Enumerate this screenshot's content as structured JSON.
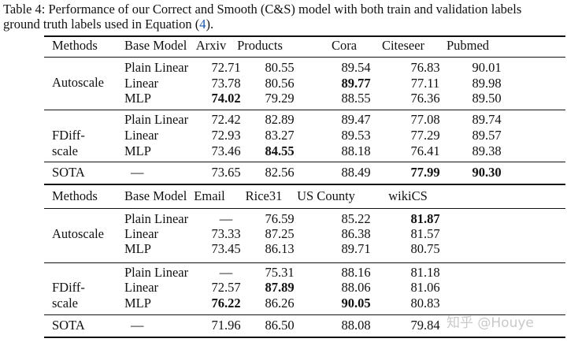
{
  "caption": {
    "line1": "Table 4: Performance of our Correct and Smooth (C&S) model with both train and validation labels",
    "line2_prefix": "ground truth labels used in Equation (",
    "line2_ref": "4",
    "line2_suffix": ")."
  },
  "table1": {
    "headers": [
      "Methods",
      "Base Model",
      "Arxiv",
      "Products",
      "Cora",
      "Citeseer",
      "Pubmed"
    ],
    "groups": [
      {
        "method": "Autoscale",
        "rows": [
          {
            "base": "Plain Linear",
            "cells": [
              "72.71",
              "80.55",
              "89.54",
              "76.83",
              "90.01"
            ],
            "bold": [
              false,
              false,
              false,
              false,
              false
            ]
          },
          {
            "base": "Linear",
            "cells": [
              "73.78",
              "80.56",
              "89.77",
              "77.11",
              "89.98"
            ],
            "bold": [
              false,
              false,
              true,
              false,
              false
            ]
          },
          {
            "base": "MLP",
            "cells": [
              "74.02",
              "79.29",
              "88.55",
              "76.36",
              "89.50"
            ],
            "bold": [
              true,
              false,
              false,
              false,
              false
            ]
          }
        ]
      },
      {
        "method_line1": "FDiff-",
        "method_line2": "scale",
        "rows": [
          {
            "base": "Plain Linear",
            "cells": [
              "72.42",
              "82.89",
              "89.47",
              "77.08",
              "89.74"
            ],
            "bold": [
              false,
              false,
              false,
              false,
              false
            ]
          },
          {
            "base": "Linear",
            "cells": [
              "72.93",
              "83.27",
              "89.53",
              "77.29",
              "89.57"
            ],
            "bold": [
              false,
              false,
              false,
              false,
              false
            ]
          },
          {
            "base": "MLP",
            "cells": [
              "73.46",
              "84.55",
              "88.18",
              "76.41",
              "89.38"
            ],
            "bold": [
              false,
              true,
              false,
              false,
              false
            ]
          }
        ]
      }
    ],
    "sota": {
      "method": "SOTA",
      "base": "—",
      "cells": [
        "73.65",
        "82.56",
        "88.49",
        "77.99",
        "90.30"
      ],
      "bold": [
        false,
        false,
        false,
        true,
        true
      ]
    }
  },
  "table2": {
    "headers": [
      "Methods",
      "Base Model",
      "Email",
      "Rice31",
      "US County",
      "wikiCS"
    ],
    "groups": [
      {
        "method": "Autoscale",
        "rows": [
          {
            "base": "Plain Linear",
            "cells": [
              "—",
              "76.59",
              "85.22",
              "81.87"
            ],
            "bold": [
              false,
              false,
              false,
              true
            ]
          },
          {
            "base": "Linear",
            "cells": [
              "73.33",
              "87.25",
              "86.38",
              "81.57"
            ],
            "bold": [
              false,
              false,
              false,
              false
            ]
          },
          {
            "base": "MLP",
            "cells": [
              "73.45",
              "86.13",
              "89.71",
              "80.75"
            ],
            "bold": [
              false,
              false,
              false,
              false
            ]
          }
        ]
      },
      {
        "method_line1": "FDiff-",
        "method_line2": "scale",
        "rows": [
          {
            "base": "Plain Linear",
            "cells": [
              "—",
              "75.31",
              "88.16",
              "81.18"
            ],
            "bold": [
              false,
              false,
              false,
              false
            ]
          },
          {
            "base": "Linear",
            "cells": [
              "72.57",
              "87.89",
              "88.06",
              "81.06"
            ],
            "bold": [
              false,
              true,
              false,
              false
            ]
          },
          {
            "base": "MLP",
            "cells": [
              "76.22",
              "86.26",
              "90.05",
              "80.83"
            ],
            "bold": [
              true,
              false,
              true,
              false
            ]
          }
        ]
      }
    ],
    "sota": {
      "method": "SOTA",
      "base": "—",
      "cells": [
        "71.96",
        "86.50",
        "88.08",
        "79.84"
      ],
      "bold": [
        false,
        false,
        false,
        false
      ]
    }
  },
  "watermark": "知乎 @Houye"
}
